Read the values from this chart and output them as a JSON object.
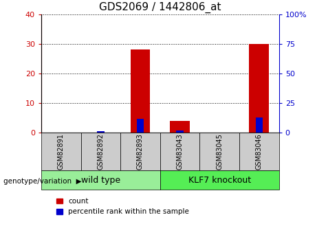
{
  "title": "GDS2069 / 1442806_at",
  "samples": [
    "GSM82891",
    "GSM82892",
    "GSM82893",
    "GSM83043",
    "GSM83045",
    "GSM83046"
  ],
  "count_values": [
    0,
    0,
    28,
    4,
    0,
    30
  ],
  "percentile_values": [
    0,
    1,
    12,
    2,
    0,
    13
  ],
  "groups": [
    {
      "label": "wild type",
      "indices": [
        0,
        1,
        2
      ],
      "color": "#99ee99"
    },
    {
      "label": "KLF7 knockout",
      "indices": [
        3,
        4,
        5
      ],
      "color": "#55ee55"
    }
  ],
  "group_label": "genotype/variation",
  "ylim_left": [
    0,
    40
  ],
  "ylim_right": [
    0,
    100
  ],
  "yticks_left": [
    0,
    10,
    20,
    30,
    40
  ],
  "yticks_right": [
    0,
    25,
    50,
    75,
    100
  ],
  "ytick_labels_right": [
    "0",
    "25",
    "50",
    "75",
    "100%"
  ],
  "count_color": "#cc0000",
  "percentile_color": "#0000cc",
  "count_bar_width": 0.5,
  "percentile_bar_width": 0.18,
  "grid_color": "#000000",
  "bg_color": "#ffffff",
  "legend_count": "count",
  "legend_percentile": "percentile rank within the sample",
  "tick_color_left": "#cc0000",
  "tick_color_right": "#0000cc",
  "sample_box_color": "#cccccc",
  "title_fontsize": 11,
  "tick_fontsize": 8,
  "sample_fontsize": 7,
  "group_fontsize": 9
}
